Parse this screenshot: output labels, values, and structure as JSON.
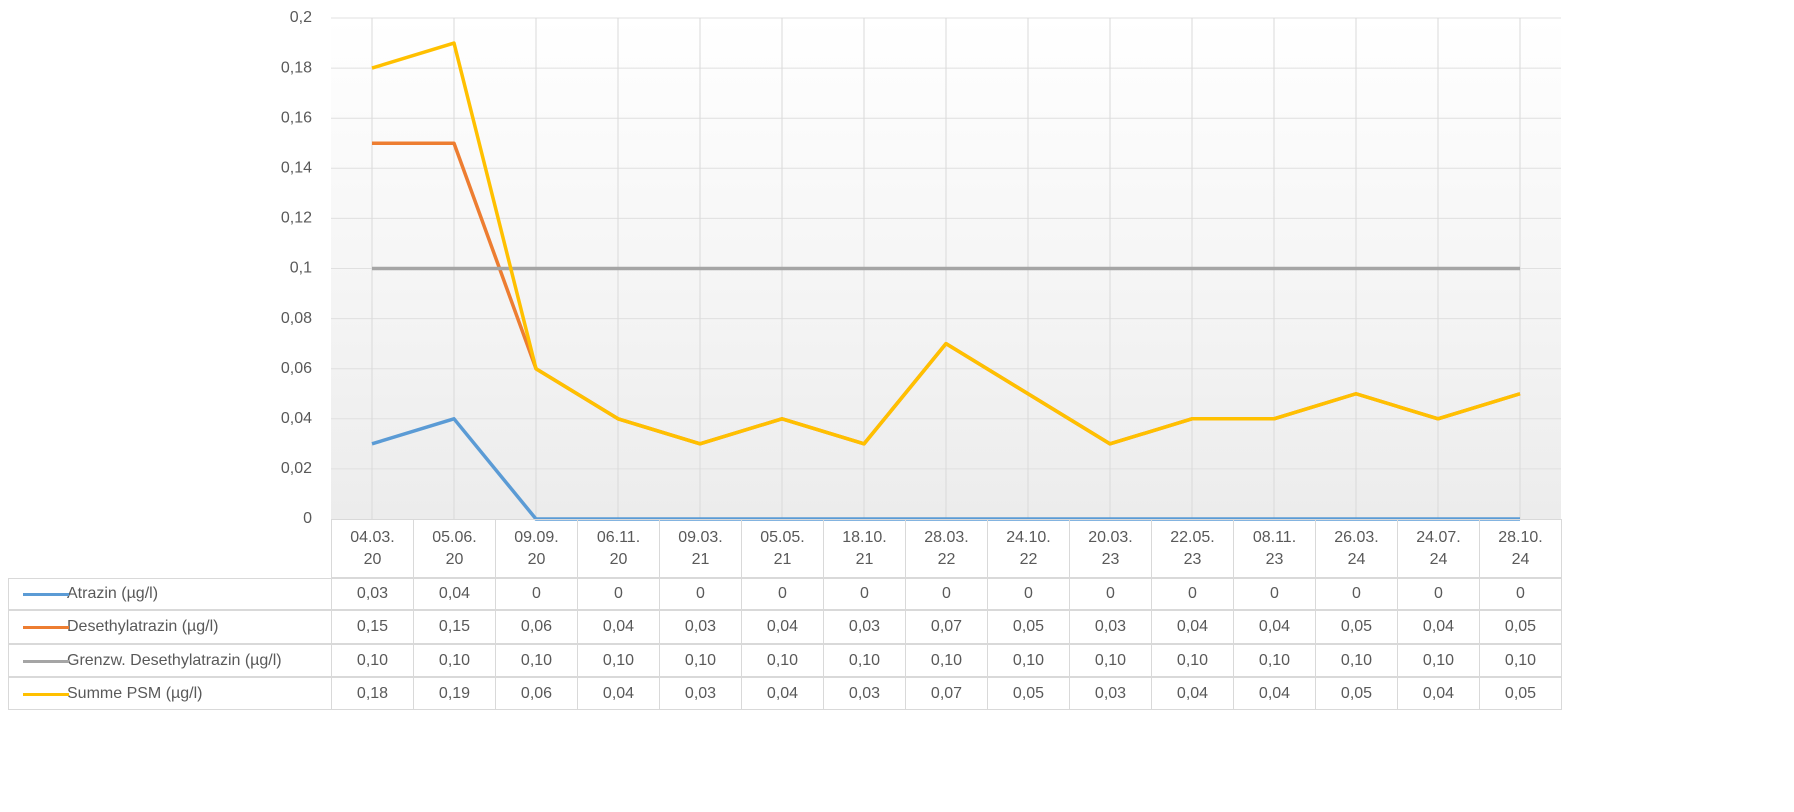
{
  "chart_data": {
    "type": "line",
    "categories": [
      "04.03.\n20",
      "05.06.\n20",
      "09.09.\n20",
      "06.11.\n20",
      "09.03.\n21",
      "05.05.\n21",
      "18.10.\n21",
      "28.03.\n22",
      "24.10.\n22",
      "20.03.\n23",
      "22.05.\n23",
      "08.11.\n23",
      "26.03.\n24",
      "24.07.\n24",
      "28.10.\n24"
    ],
    "series": [
      {
        "name": "Atrazin (µg/l)",
        "color": "#5b9bd5",
        "values": [
          0.03,
          0.04,
          0,
          0,
          0,
          0,
          0,
          0,
          0,
          0,
          0,
          0,
          0,
          0,
          0
        ],
        "value_labels": [
          "0,03",
          "0,04",
          "0",
          "0",
          "0",
          "0",
          "0",
          "0",
          "0",
          "0",
          "0",
          "0",
          "0",
          "0",
          "0"
        ]
      },
      {
        "name": "Desethylatrazin (µg/l)",
        "color": "#ed7d31",
        "values": [
          0.15,
          0.15,
          0.06,
          0.04,
          0.03,
          0.04,
          0.03,
          0.07,
          0.05,
          0.03,
          0.04,
          0.04,
          0.05,
          0.04,
          0.05
        ],
        "value_labels": [
          "0,15",
          "0,15",
          "0,06",
          "0,04",
          "0,03",
          "0,04",
          "0,03",
          "0,07",
          "0,05",
          "0,03",
          "0,04",
          "0,04",
          "0,05",
          "0,04",
          "0,05"
        ]
      },
      {
        "name": "Grenzw. Desethylatrazin (µg/l)",
        "color": "#a5a5a5",
        "values": [
          0.1,
          0.1,
          0.1,
          0.1,
          0.1,
          0.1,
          0.1,
          0.1,
          0.1,
          0.1,
          0.1,
          0.1,
          0.1,
          0.1,
          0.1
        ],
        "value_labels": [
          "0,10",
          "0,10",
          "0,10",
          "0,10",
          "0,10",
          "0,10",
          "0,10",
          "0,10",
          "0,10",
          "0,10",
          "0,10",
          "0,10",
          "0,10",
          "0,10",
          "0,10"
        ]
      },
      {
        "name": "Summe PSM (µg/l)",
        "color": "#ffc000",
        "values": [
          0.18,
          0.19,
          0.06,
          0.04,
          0.03,
          0.04,
          0.03,
          0.07,
          0.05,
          0.03,
          0.04,
          0.04,
          0.05,
          0.04,
          0.05
        ],
        "value_labels": [
          "0,18",
          "0,19",
          "0,06",
          "0,04",
          "0,03",
          "0,04",
          "0,03",
          "0,07",
          "0,05",
          "0,03",
          "0,04",
          "0,04",
          "0,05",
          "0,04",
          "0,05"
        ]
      }
    ],
    "ylim": [
      0,
      0.2
    ],
    "yticks": [
      0,
      {
        "value": 0.02,
        "label": "0,02"
      },
      {
        "value": 0.04,
        "label": "0,04"
      },
      {
        "value": 0.06,
        "label": "0,06"
      },
      {
        "value": 0.08,
        "label": "0,08"
      },
      {
        "value": 0.1,
        "label": "0,1"
      },
      {
        "value": 0.12,
        "label": "0,12"
      },
      {
        "value": 0.14,
        "label": "0,14"
      },
      {
        "value": 0.16,
        "label": "0,16"
      },
      {
        "value": 0.18,
        "label": "0,18"
      },
      {
        "value": 0.2,
        "label": "0,2"
      }
    ],
    "grid": true
  }
}
